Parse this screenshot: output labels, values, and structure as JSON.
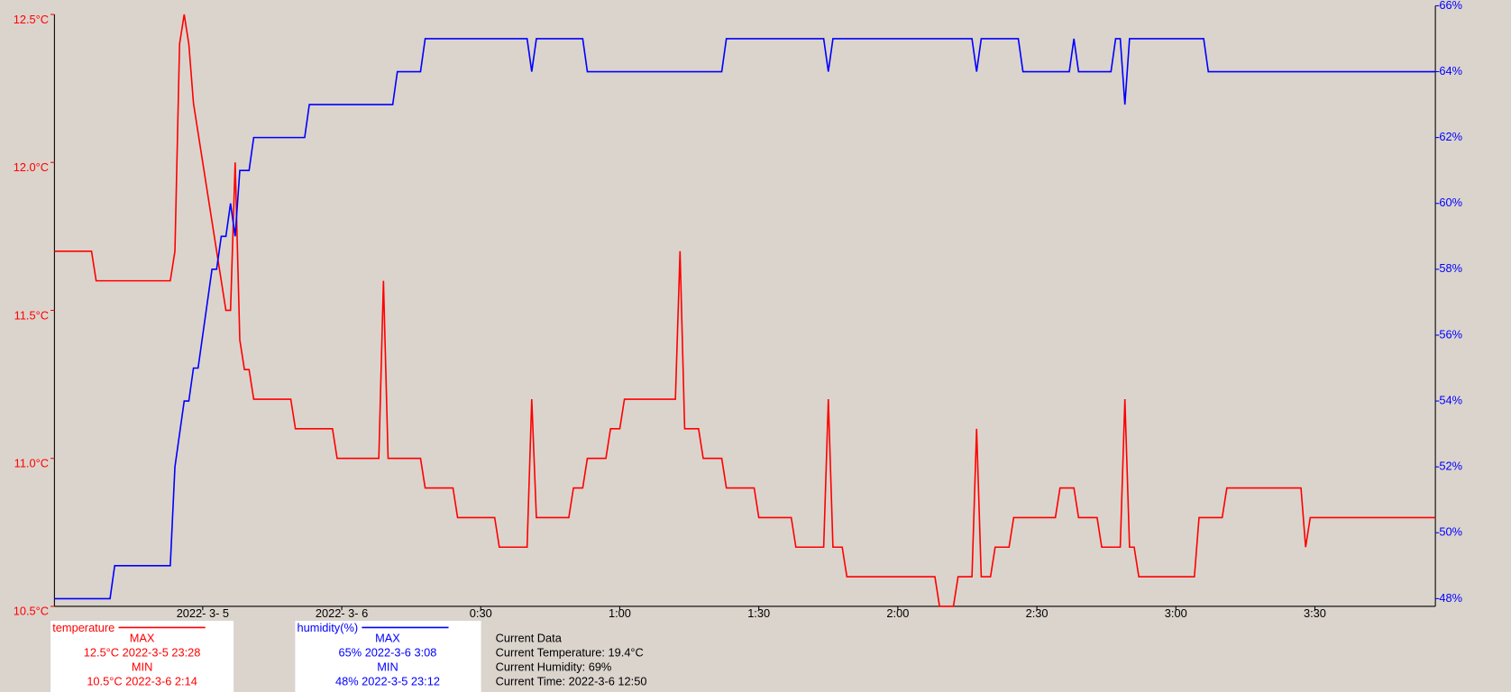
{
  "chart_data": {
    "type": "line",
    "xlim": [
      -62,
      236
    ],
    "xticks": [
      {
        "value": -30,
        "label": "2022- 3- 5"
      },
      {
        "value": 0,
        "label": "2022- 3- 6"
      },
      {
        "value": 30,
        "label": "0:30"
      },
      {
        "value": 60,
        "label": "1:00"
      },
      {
        "value": 90,
        "label": "1:30"
      },
      {
        "value": 120,
        "label": "2:00"
      },
      {
        "value": 150,
        "label": "2:30"
      },
      {
        "value": 180,
        "label": "3:00"
      },
      {
        "value": 210,
        "label": "3:30"
      }
    ],
    "ylim": [
      10.5,
      12.5
    ],
    "yticks": [
      {
        "value": 10.5,
        "label": "10.5°C"
      },
      {
        "value": 11,
        "label": "11.0°C"
      },
      {
        "value": 11.5,
        "label": "11.5°C"
      },
      {
        "value": 12,
        "label": "12.0°C"
      },
      {
        "value": 12.5,
        "label": "12.5°C"
      }
    ],
    "y2lim": [
      48,
      66
    ],
    "y2ticks": [
      {
        "value": 48,
        "label": "48%"
      },
      {
        "value": 50,
        "label": "50%"
      },
      {
        "value": 52,
        "label": "52%"
      },
      {
        "value": 54,
        "label": "54%"
      },
      {
        "value": 56,
        "label": "56%"
      },
      {
        "value": 58,
        "label": "58%"
      },
      {
        "value": 60,
        "label": "60%"
      },
      {
        "value": 62,
        "label": "62%"
      },
      {
        "value": 64,
        "label": "64%"
      },
      {
        "value": 66,
        "label": "66%"
      }
    ],
    "series": [
      {
        "name": "temperature",
        "color": "#ff0000",
        "x": [
          -62,
          -54,
          -53,
          -37,
          -36,
          -35,
          -34,
          -33,
          -32,
          -25,
          -24,
          -23,
          -22.5,
          -22,
          -21,
          -20,
          -19,
          -11,
          -10,
          -2,
          -1,
          8,
          9,
          10,
          17,
          18,
          24,
          25,
          33,
          34,
          40,
          41,
          42,
          49,
          50,
          52,
          53,
          57,
          58,
          60,
          61,
          72,
          73,
          74,
          77,
          78,
          82,
          83,
          89,
          90,
          97,
          98,
          104,
          105,
          106,
          108,
          109,
          128,
          129,
          132,
          133,
          136,
          137,
          138,
          140,
          141,
          144,
          145,
          154,
          155,
          158,
          159,
          163,
          164,
          168,
          169,
          170,
          171,
          172,
          184,
          185,
          190,
          191,
          207,
          208,
          209,
          236
        ],
        "values": [
          11.7,
          11.7,
          11.6,
          11.6,
          11.7,
          12.4,
          12.5,
          12.4,
          12.2,
          11.5,
          11.5,
          12.0,
          11.7,
          11.4,
          11.3,
          11.3,
          11.2,
          11.2,
          11.1,
          11.1,
          11.0,
          11.0,
          11.6,
          11.0,
          11.0,
          10.9,
          10.9,
          10.8,
          10.8,
          10.7,
          10.7,
          11.2,
          10.8,
          10.8,
          10.9,
          10.9,
          11.0,
          11.0,
          11.1,
          11.1,
          11.2,
          11.2,
          11.7,
          11.1,
          11.1,
          11.0,
          11.0,
          10.9,
          10.9,
          10.8,
          10.8,
          10.7,
          10.7,
          11.2,
          10.7,
          10.7,
          10.6,
          10.6,
          10.5,
          10.5,
          10.6,
          10.6,
          11.1,
          10.6,
          10.6,
          10.7,
          10.7,
          10.8,
          10.8,
          10.9,
          10.9,
          10.8,
          10.8,
          10.7,
          10.7,
          11.2,
          10.7,
          10.7,
          10.6,
          10.6,
          10.8,
          10.8,
          10.9,
          10.9,
          10.7,
          10.8,
          10.8
        ]
      },
      {
        "name": "humidity(%)",
        "color": "#0000ff",
        "axis": "y2",
        "x": [
          -62,
          -50,
          -49,
          -37,
          -36,
          -34,
          -33,
          -32,
          -31,
          -28,
          -27,
          -26,
          -25,
          -24,
          -23,
          -22,
          -20,
          -19,
          -8,
          -7,
          11,
          12,
          17,
          18,
          40,
          41,
          42,
          52,
          53,
          82,
          83,
          104,
          105,
          106,
          136,
          137,
          138,
          146,
          147,
          157,
          158,
          159,
          166,
          167,
          168,
          169,
          170,
          186,
          187,
          236
        ],
        "values": [
          48,
          48,
          49,
          49,
          52,
          54,
          54,
          55,
          55,
          58,
          58,
          59,
          59,
          60,
          59,
          61,
          61,
          62,
          62,
          63,
          63,
          64,
          64,
          65,
          65,
          64,
          65,
          65,
          64,
          64,
          65,
          65,
          64,
          65,
          65,
          64,
          65,
          65,
          64,
          64,
          65,
          64,
          64,
          65,
          65,
          63,
          65,
          65,
          64,
          64
        ]
      }
    ]
  },
  "stats": [
    {
      "max_heading": "MAX",
      "max": "12.5°C 2022-3-5 23:28",
      "min_heading": "MIN",
      "min": "10.5°C 2022-3-6 2:14"
    },
    {
      "max_heading": "MAX",
      "max": "65% 2022-3-6 3:08",
      "min_heading": "MIN",
      "min": "48% 2022-3-5 23:12"
    }
  ],
  "current": {
    "title": "Current Data",
    "lines": [
      "Current Temperature: 19.4°C",
      "Current Humidity: 69%",
      "Current Time: 2022-3-6 12:50"
    ]
  }
}
